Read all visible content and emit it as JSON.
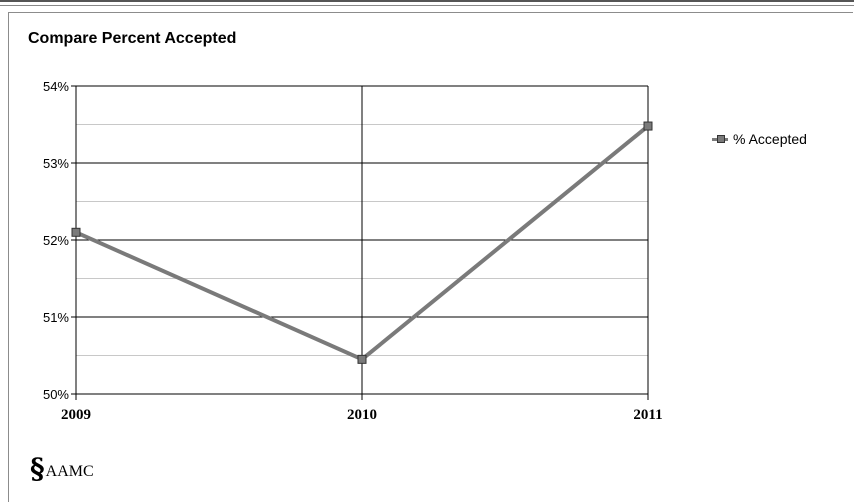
{
  "chart_data": {
    "type": "line",
    "title": "Compare Percent Accepted",
    "categories": [
      "2009",
      "2010",
      "2011"
    ],
    "series": [
      {
        "name": "% Accepted",
        "values": [
          52.1,
          50.45,
          53.48
        ],
        "color": "#7a7a7a"
      }
    ],
    "ylim": [
      50,
      54
    ],
    "yticks": [
      "50%",
      "51%",
      "52%",
      "53%",
      "54%"
    ],
    "ytick_values": [
      50,
      51,
      52,
      53,
      54
    ],
    "grid": true,
    "legend_position": "right"
  },
  "logo": {
    "text": "AAMC"
  }
}
